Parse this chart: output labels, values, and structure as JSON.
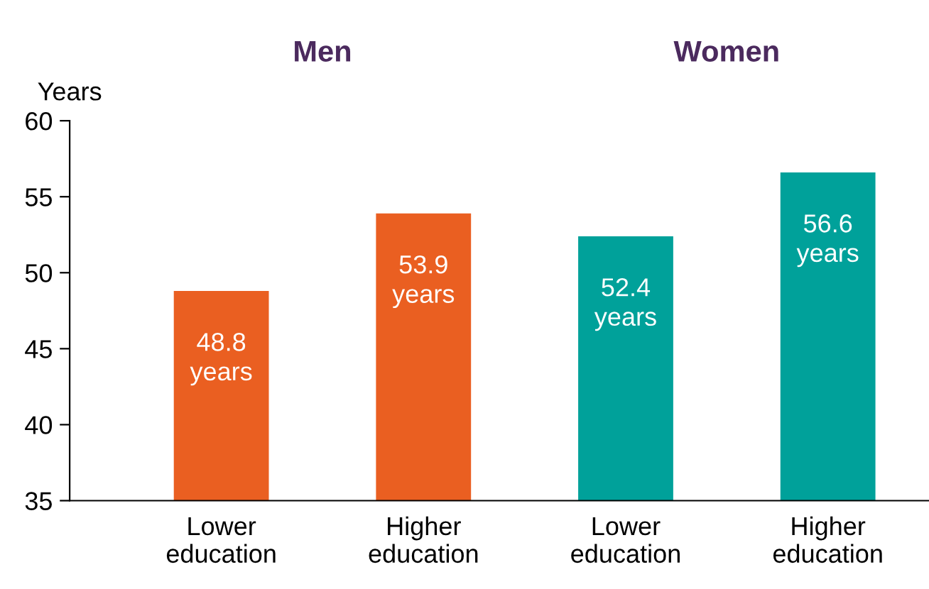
{
  "chart_data": {
    "type": "bar",
    "categories": [
      "Lower\neducation",
      "Higher\neducation",
      "Lower\neducation",
      "Higher\neducation"
    ],
    "values": [
      48.8,
      53.9,
      52.4,
      56.6
    ],
    "colors": [
      "#ea5f21",
      "#ea5f21",
      "#00a19a",
      "#00a19a"
    ],
    "value_labels": [
      "48.8\nyears",
      "53.9\nyears",
      "52.4\nyears",
      "56.6\nyears"
    ],
    "ylabel": "Years",
    "annotations": [
      "Men",
      "Women"
    ],
    "ylim": [
      35,
      60
    ],
    "yticks": [
      35,
      40,
      45,
      50,
      55,
      60
    ],
    "grid": false,
    "legend": false
  }
}
